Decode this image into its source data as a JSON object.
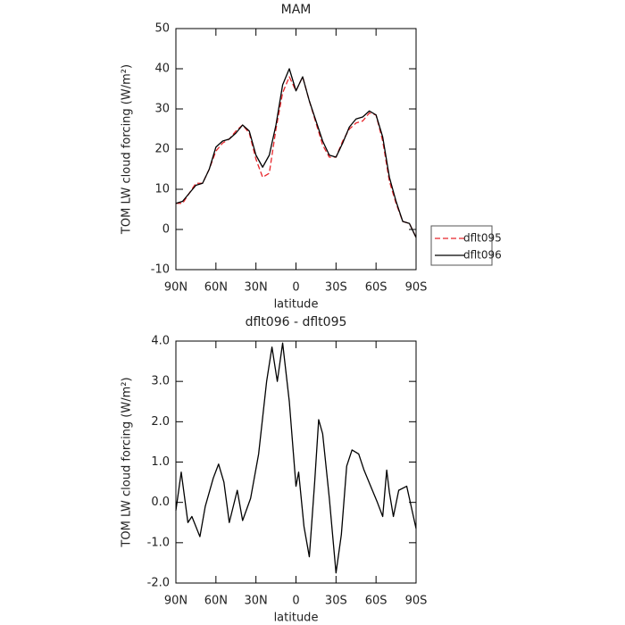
{
  "chart_data": [
    {
      "type": "line",
      "title": "MAM",
      "xlabel": "latitude",
      "ylabel": "TOM LW cloud forcing (W/m²)",
      "x": [
        90,
        85,
        80,
        75,
        70,
        65,
        60,
        55,
        50,
        45,
        40,
        35,
        30,
        25,
        20,
        15,
        10,
        5,
        0,
        -5,
        -10,
        -15,
        -20,
        -25,
        -30,
        -35,
        -40,
        -45,
        -50,
        -55,
        -60,
        -65,
        -70,
        -75,
        -80,
        -85,
        -90
      ],
      "series": [
        {
          "name": "dflt095",
          "color": "#e8262b",
          "linestyle": "dashed",
          "values": [
            6.5,
            6.5,
            9,
            11.5,
            11.5,
            15,
            19.5,
            21.5,
            22.5,
            24.5,
            26,
            24,
            17.5,
            13,
            14,
            25,
            34,
            38,
            34.5,
            38,
            32,
            26.5,
            21,
            18,
            18,
            22,
            25,
            26.5,
            27,
            29,
            28.5,
            22,
            12,
            6.5,
            2,
            1.5,
            -2
          ]
        },
        {
          "name": "dflt096",
          "color": "#000000",
          "linestyle": "solid",
          "values": [
            6.5,
            7,
            9,
            11,
            11.5,
            15,
            20.5,
            22,
            22.5,
            24,
            26,
            24.5,
            18.5,
            15.5,
            18.5,
            26,
            36,
            40,
            34.5,
            38,
            32,
            27,
            22,
            18.5,
            18,
            21.5,
            25.5,
            27.5,
            28,
            29.5,
            28.5,
            23,
            13,
            7,
            2,
            1.5,
            -2
          ]
        }
      ],
      "xlim": [
        90,
        -90
      ],
      "xticks": [
        {
          "value": 90,
          "label": "90N"
        },
        {
          "value": 60,
          "label": "60N"
        },
        {
          "value": 30,
          "label": "30N"
        },
        0,
        {
          "value": -30,
          "label": "30S"
        },
        {
          "value": -60,
          "label": "60S"
        },
        {
          "value": -90,
          "label": "90S"
        }
      ],
      "ylim": [
        -10,
        50
      ],
      "yticks": [
        -10,
        0,
        10,
        20,
        30,
        40,
        50
      ],
      "legend": "right"
    },
    {
      "type": "line",
      "title": "dflt096 - dflt095",
      "xlabel": "latitude",
      "ylabel": "TOM LW cloud forcing (W/m²)",
      "x": [
        90,
        86,
        81,
        78,
        72,
        68,
        62,
        58,
        54,
        50,
        44,
        40,
        34,
        28,
        22,
        18,
        14,
        10,
        5,
        0,
        -2,
        -6,
        -10,
        -14,
        -17,
        -20,
        -25,
        -30,
        -34,
        -38,
        -42,
        -47,
        -51,
        -56,
        -61,
        -65,
        -68,
        -70,
        -73,
        -77,
        -83,
        -90
      ],
      "series": [
        {
          "name": "dflt096 - dflt095",
          "color": "#000000",
          "linestyle": "solid",
          "values": [
            -0.2,
            0.75,
            -0.5,
            -0.35,
            -0.85,
            -0.1,
            0.6,
            0.95,
            0.5,
            -0.5,
            0.3,
            -0.45,
            0.1,
            1.2,
            3.0,
            3.85,
            3.0,
            3.95,
            2.5,
            0.4,
            0.75,
            -0.6,
            -1.35,
            0.5,
            2.05,
            1.7,
            0.1,
            -1.75,
            -0.8,
            0.9,
            1.3,
            1.2,
            0.8,
            0.4,
            0.0,
            -0.35,
            0.8,
            0.25,
            -0.35,
            0.3,
            0.4,
            -0.65
          ]
        }
      ],
      "xlim": [
        90,
        -90
      ],
      "xticks": [
        {
          "value": 90,
          "label": "90N"
        },
        {
          "value": 60,
          "label": "60N"
        },
        {
          "value": 30,
          "label": "30N"
        },
        0,
        {
          "value": -30,
          "label": "30S"
        },
        {
          "value": -60,
          "label": "60S"
        },
        {
          "value": -90,
          "label": "90S"
        }
      ],
      "ylim": [
        -2,
        4
      ],
      "yticks": [
        {
          "value": -2,
          "label": "-2.0"
        },
        {
          "value": -1,
          "label": "-1.0"
        },
        {
          "value": 0,
          "label": "0.0"
        },
        {
          "value": 1,
          "label": "1.0"
        },
        {
          "value": 2,
          "label": "2.0"
        },
        {
          "value": 3,
          "label": "3.0"
        },
        {
          "value": 4,
          "label": "4.0"
        }
      ]
    }
  ]
}
